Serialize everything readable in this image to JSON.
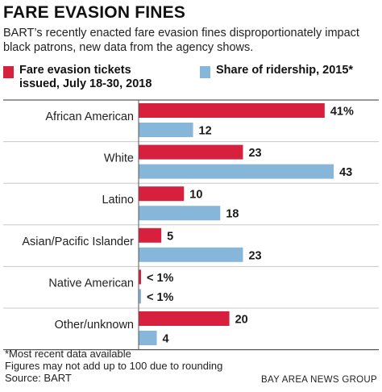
{
  "header": {
    "title": "FARE EVASION FINES",
    "subtitle": "BART’s recently enacted fare evasion fines disproportionately impact black patrons, new data from the agency shows."
  },
  "legend": [
    {
      "label_line1": "Fare evasion tickets",
      "label_line2": "issued, July 18-30, 2018",
      "color": "#d6203e"
    },
    {
      "label_line1": "Share of ridership, 2015*",
      "label_line2": "",
      "color": "#86b7da"
    }
  ],
  "chart_data": {
    "type": "bar",
    "orientation": "horizontal",
    "unit": "percent",
    "categories": [
      "African American",
      "White",
      "Latino",
      "Asian/Pacific Islander",
      "Native American",
      "Other/unknown"
    ],
    "series": [
      {
        "name": "Fare evasion tickets issued, July 18-30, 2018",
        "color": "#d6203e",
        "values": [
          41,
          23,
          10,
          5,
          0.5,
          20
        ],
        "labels": [
          "41%",
          "23",
          "10",
          "5",
          "< 1%",
          "20"
        ]
      },
      {
        "name": "Share of ridership, 2015*",
        "color": "#86b7da",
        "values": [
          12,
          43,
          18,
          23,
          0.5,
          4
        ],
        "labels": [
          "12",
          "43",
          "18",
          "23",
          "< 1%",
          "4"
        ]
      }
    ],
    "xlim": [
      0,
      50
    ],
    "grid": false,
    "legend_position": "top"
  },
  "footer": {
    "note1": "*Most recent data available",
    "note2": "Figures may not add up to 100 due to rounding",
    "source": "Source: BART",
    "credit": "BAY AREA NEWS GROUP"
  }
}
